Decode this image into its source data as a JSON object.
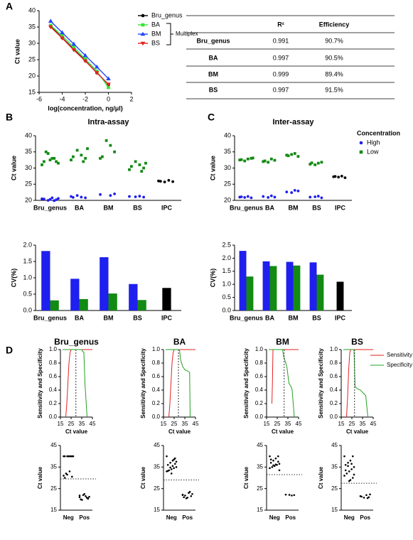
{
  "panel_labels": [
    "A",
    "B",
    "C",
    "D"
  ],
  "table": {
    "header": [
      "R²",
      "Efficiency"
    ],
    "rows": [
      [
        "Bru_genus",
        "0.991",
        "90.7%"
      ],
      [
        "BA",
        "0.997",
        "90.5%"
      ],
      [
        "BM",
        "0.999",
        "89.4%"
      ],
      [
        "BS",
        "0.997",
        "91.5%"
      ]
    ]
  },
  "chart_data": [
    {
      "type": "scatter",
      "xlabel": "log(concentration, ng/μl)",
      "ylabel": "Ct value",
      "annotation": "Multiplex",
      "legend": "right",
      "x": [
        -5,
        -4,
        -3,
        -2,
        -1,
        0
      ],
      "xlim": [
        -6,
        2
      ],
      "xticks": [
        -6,
        -4,
        -2,
        0,
        2
      ],
      "ylim": [
        15,
        40
      ],
      "yticks": [
        15,
        20,
        25,
        30,
        35,
        40
      ],
      "series": [
        {
          "name": "Bru_genus",
          "color": "#000000",
          "marker": "circle",
          "values": [
            35.2,
            31.7,
            28.2,
            24.7,
            21.0,
            17.4
          ]
        },
        {
          "name": "BA",
          "color": "#33e633",
          "marker": "square",
          "values": [
            35.5,
            32.3,
            28.8,
            25.2,
            21.5,
            16.5
          ]
        },
        {
          "name": "BM",
          "color": "#2244ff",
          "marker": "triangle",
          "values": [
            36.8,
            33.3,
            29.8,
            26.3,
            22.8,
            19.2
          ]
        },
        {
          "name": "BS",
          "color": "#e62222",
          "marker": "triangle-down",
          "values": [
            35.0,
            31.6,
            28.0,
            24.6,
            21.0,
            17.5
          ]
        }
      ]
    },
    {
      "type": "dot",
      "title": "Intra-assay",
      "ylabel": "Ct value",
      "categories": [
        "Bru_genus",
        "BA",
        "BM",
        "BS",
        "IPC"
      ],
      "ylim": [
        20,
        40
      ],
      "yticks": [
        20,
        25,
        30,
        35,
        40
      ],
      "series": [
        {
          "color": "#1f1fef",
          "marker": "circle",
          "values": [
            [
              20.5,
              20.2,
              20.8,
              20.0,
              20.4,
              20.6,
              19.9,
              20.3
            ],
            [
              21.2,
              20.8,
              21.0,
              21.5,
              20.9
            ],
            [
              21.8,
              22.0,
              21.5
            ],
            [
              21.2,
              21.0,
              21.3,
              21.1
            ],
            null
          ]
        },
        {
          "color": "#138a13",
          "marker": "square",
          "values": [
            [
              31,
              32,
              33,
              34.5,
              32,
              31.5,
              33,
              32.5,
              35
            ],
            [
              32.5,
              33,
              34,
              35.5,
              33.5,
              36,
              32
            ],
            [
              33,
              35,
              37,
              38.5,
              33.5
            ],
            [
              29.5,
              30,
              31,
              32,
              30.5,
              31.5,
              29
            ],
            null
          ]
        },
        {
          "color": "#000000",
          "marker": "circle",
          "values": [
            null,
            null,
            null,
            null,
            [
              26,
              25.8,
              26.2,
              25.7,
              25.9
            ]
          ]
        }
      ]
    },
    {
      "type": "bar",
      "ylabel": "CV(%)",
      "categories": [
        "Bru_genus",
        "BA",
        "BM",
        "BS",
        "IPC"
      ],
      "ylim": [
        0,
        2
      ],
      "yticks": [
        {
          "value": 0,
          "label": "0.0"
        },
        0.5,
        {
          "value": 1,
          "label": "1.0"
        },
        1.5,
        {
          "value": 2,
          "label": "2.0"
        }
      ],
      "series": [
        {
          "color": "#1f1fef",
          "values": [
            1.82,
            0.97,
            1.63,
            0.81,
            null
          ]
        },
        {
          "color": "#138a13",
          "values": [
            0.31,
            0.35,
            0.52,
            0.32,
            null
          ]
        },
        {
          "color": "#000000",
          "values": [
            null,
            null,
            null,
            null,
            0.69
          ]
        }
      ]
    },
    {
      "type": "dot",
      "title": "Inter-assay",
      "ylabel": "Ct value",
      "categories": [
        "Bru_genus",
        "BA",
        "BM",
        "BS",
        "IPC"
      ],
      "ylim": [
        20,
        40
      ],
      "yticks": [
        20,
        25,
        30,
        35,
        40
      ],
      "legend": "right",
      "legend_title": "Concentration",
      "series": [
        {
          "name": "High",
          "color": "#1f1fef",
          "marker": "circle",
          "values": [
            [
              21,
              20.8,
              21.2,
              20.9,
              21.1
            ],
            [
              21.2,
              21,
              21.4,
              20.9
            ],
            [
              22.6,
              22.9,
              23.1,
              22.4
            ],
            [
              21,
              20.8,
              21.3,
              21.1
            ],
            null
          ]
        },
        {
          "name": "Low",
          "color": "#138a13",
          "marker": "square",
          "values": [
            [
              32.5,
              33,
              32.8,
              32.2,
              32.6,
              33.1
            ],
            [
              32,
              32.4,
              32.8,
              31.8,
              32.2
            ],
            [
              34,
              33.6,
              34.5,
              34.2,
              33.8
            ],
            [
              31.2,
              31.8,
              31.5,
              31,
              31.6
            ],
            null
          ]
        },
        {
          "color": "#000000",
          "marker": "circle",
          "values": [
            null,
            null,
            null,
            null,
            [
              27.3,
              27.0,
              27.5,
              27.2,
              27.4
            ]
          ]
        }
      ]
    },
    {
      "type": "bar",
      "ylabel": "CV(%)",
      "categories": [
        "Bru_genus",
        "BA",
        "BM",
        "BS",
        "IPC"
      ],
      "ylim": [
        0,
        2.5
      ],
      "yticks": [
        {
          "value": 0,
          "label": "0.0"
        },
        0.5,
        {
          "value": 1,
          "label": "1.0"
        },
        1.5,
        {
          "value": 2,
          "label": "2.0"
        },
        2.5
      ],
      "series": [
        {
          "color": "#1f1fef",
          "values": [
            2.28,
            1.88,
            1.86,
            1.84,
            null
          ]
        },
        {
          "color": "#138a13",
          "values": [
            1.3,
            1.7,
            1.72,
            1.37,
            null
          ]
        },
        {
          "color": "#000000",
          "values": [
            null,
            null,
            null,
            null,
            1.1
          ]
        }
      ]
    },
    {
      "type": "line",
      "title": "Bru_genus",
      "xlabel": "Ct value",
      "ylabel": "Sensitivity and Specificity",
      "cutoff": 29.5,
      "xlim": [
        15,
        45
      ],
      "xticks": [
        15,
        25,
        35,
        45
      ],
      "ylim": [
        0,
        1
      ],
      "yticks": [
        {
          "value": 0,
          "label": "0.0"
        },
        0.2,
        0.4,
        0.6,
        0.8,
        {
          "value": 1,
          "label": "1.0"
        }
      ],
      "series": [
        {
          "name": "Sensitivity",
          "color": "#e62222",
          "x": [
            20,
            21,
            22,
            23,
            24,
            25,
            45
          ],
          "values": [
            0,
            0.2,
            0.5,
            0.8,
            0.95,
            1,
            1
          ]
        },
        {
          "name": "Specificity",
          "color": "#22a022",
          "x": [
            17,
            35,
            36,
            37,
            38,
            40
          ],
          "values": [
            1,
            1,
            0.97,
            0.96,
            0.5,
            0
          ]
        }
      ]
    },
    {
      "type": "line",
      "title": "BA",
      "xlabel": "Ct value",
      "ylabel": "Sensitivity and Specificity",
      "cutoff": 29,
      "xlim": [
        15,
        45
      ],
      "xticks": [
        15,
        25,
        35,
        45
      ],
      "ylim": [
        0,
        1
      ],
      "yticks": [
        {
          "value": 0,
          "label": "0.0"
        },
        0.2,
        0.4,
        0.6,
        0.8,
        {
          "value": 1,
          "label": "1.0"
        }
      ],
      "series": [
        {
          "name": "Sensitivity",
          "color": "#e62222",
          "x": [
            20,
            21,
            22,
            23,
            24,
            25,
            45
          ],
          "values": [
            0,
            0.2,
            0.5,
            0.8,
            0.95,
            1,
            1
          ]
        },
        {
          "name": "Specificity",
          "color": "#22a022",
          "x": [
            17,
            30,
            31,
            33,
            35,
            38,
            39.5,
            40
          ],
          "values": [
            1,
            1,
            0.85,
            0.75,
            0.7,
            0.68,
            0.66,
            0
          ]
        }
      ]
    },
    {
      "type": "line",
      "title": "BM",
      "xlabel": "Ct value",
      "ylabel": "Sensitivity and Specificity",
      "cutoff": 31.5,
      "xlim": [
        15,
        45
      ],
      "xticks": [
        15,
        25,
        35,
        45
      ],
      "ylim": [
        0,
        1
      ],
      "yticks": [
        {
          "value": 0,
          "label": "0.0"
        },
        0.2,
        0.4,
        0.6,
        0.8,
        {
          "value": 1,
          "label": "1.0"
        }
      ],
      "series": [
        {
          "name": "Sensitivity",
          "color": "#e62222",
          "x": [
            20,
            20.5,
            21,
            45
          ],
          "values": [
            0.2,
            0.5,
            1,
            1
          ]
        },
        {
          "name": "Specificity",
          "color": "#22a022",
          "x": [
            17,
            30,
            31,
            34,
            36,
            38,
            39,
            41
          ],
          "values": [
            1,
            1,
            0.9,
            0.75,
            0.5,
            0.45,
            0.4,
            0
          ]
        }
      ]
    },
    {
      "type": "line",
      "title": "BS",
      "xlabel": "Ct value",
      "ylabel": "Sensitivity and Specificity",
      "cutoff": 27.5,
      "legend": "right",
      "xlim": [
        15,
        45
      ],
      "xticks": [
        15,
        25,
        35,
        45
      ],
      "ylim": [
        0,
        1
      ],
      "yticks": [
        {
          "value": 0,
          "label": "0.0"
        },
        0.2,
        0.4,
        0.6,
        0.8,
        {
          "value": 1,
          "label": "1.0"
        }
      ],
      "series": [
        {
          "name": "Sensitivity",
          "color": "#e62222",
          "x": [
            20,
            21,
            22,
            23,
            24,
            45
          ],
          "values": [
            0,
            0.3,
            0.7,
            0.95,
            1,
            1
          ]
        },
        {
          "name": "Specificity",
          "color": "#22a022",
          "x": [
            17,
            27,
            28,
            30,
            33,
            36,
            38,
            40
          ],
          "values": [
            1,
            1,
            0.45,
            0.42,
            0.4,
            0.35,
            0.32,
            0
          ]
        }
      ]
    },
    {
      "type": "dot",
      "ylabel": "Ct value",
      "categories": [
        "Neg",
        "Pos"
      ],
      "cutoff": 29.5,
      "ylim": [
        15,
        45
      ],
      "yticks": [
        15,
        25,
        35,
        45
      ],
      "series": [
        {
          "color": "#000000",
          "marker": "circle",
          "values": [
            [
              40,
              40,
              40,
              40,
              40,
              40,
              40,
              40,
              32,
              31,
              30.5,
              33,
              31.5,
              30
            ],
            [
              21,
              20.5,
              21.5,
              22,
              20,
              21.2,
              20.8,
              22.5,
              19.8,
              21.8,
              20.3
            ]
          ]
        }
      ]
    },
    {
      "type": "dot",
      "ylabel": "Ct value",
      "categories": [
        "Neg",
        "Pos"
      ],
      "cutoff": 29,
      "ylim": [
        15,
        45
      ],
      "yticks": [
        15,
        25,
        35,
        45
      ],
      "series": [
        {
          "color": "#000000",
          "marker": "circle",
          "values": [
            [
              40,
              39,
              38,
              37,
              36,
              35,
              34.5,
              34,
              33.5,
              33,
              36.5,
              35.5,
              34.8,
              33.2,
              37.5,
              38.5,
              32
            ],
            [
              22,
              21.5,
              23,
              20.5,
              21,
              22.5,
              23.5,
              20.8,
              21.8,
              22.2
            ]
          ]
        }
      ]
    },
    {
      "type": "dot",
      "ylabel": "Ct value",
      "categories": [
        "Neg",
        "Pos"
      ],
      "cutoff": 31.5,
      "ylim": [
        15,
        45
      ],
      "yticks": [
        15,
        25,
        35,
        45
      ],
      "series": [
        {
          "color": "#000000",
          "marker": "circle",
          "values": [
            [
              40,
              40,
              39,
              38,
              37,
              36.5,
              36,
              35.5,
              35,
              34.5,
              37.5,
              36.2,
              35.8,
              38.5,
              33.5
            ],
            [
              22.2,
              22,
              21.8,
              22.1
            ]
          ]
        }
      ]
    },
    {
      "type": "dot",
      "ylabel": "Ct value",
      "categories": [
        "Neg",
        "Pos"
      ],
      "cutoff": 27.5,
      "ylim": [
        15,
        45
      ],
      "yticks": [
        15,
        25,
        35,
        45
      ],
      "series": [
        {
          "color": "#000000",
          "marker": "circle",
          "values": [
            [
              40,
              40,
              38,
              37,
              36,
              35,
              34,
              33,
              32,
              31,
              30,
              29,
              35.5,
              33.5,
              31.5,
              36.5,
              28.5
            ],
            [
              21.5,
              21,
              22,
              20.8,
              21.3,
              22.3,
              20.6
            ]
          ]
        }
      ]
    }
  ]
}
